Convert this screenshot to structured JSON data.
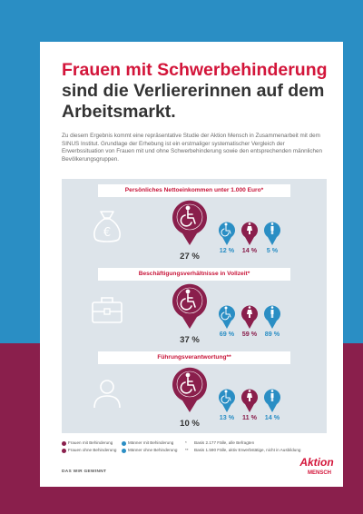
{
  "title": {
    "line1": "Frauen mit Schwerbehinderung",
    "line2": "sind die Verliererinnen auf dem Arbeitsmarkt."
  },
  "intro": "Zu diesem Ergebnis kommt eine repräsentative Studie der Aktion Mensch in Zusammenarbeit mit dem SINUS Institut. Grundlage der Erhebung ist ein erstmaliger systematischer Vergleich der Erwerbssituation von Frauen mit und ohne Schwerbehinderung sowie den entsprechenden männlichen Bevölkerungsgruppen.",
  "sections": [
    {
      "heading": "Persönliches Nettoeinkommen unter 1.000 Euro*",
      "icon": "money-bag-euro-icon",
      "main_value": "27 %",
      "values": [
        "12 %",
        "14 %",
        "5 %"
      ]
    },
    {
      "heading": "Beschäftigungsverhältnisse in Vollzeit*",
      "icon": "briefcase-icon",
      "main_value": "37 %",
      "values": [
        "69 %",
        "59 %",
        "89 %"
      ]
    },
    {
      "heading": "Führungsverantwortung**",
      "icon": "person-icon",
      "main_value": "10 %",
      "values": [
        "13 %",
        "11 %",
        "14 %"
      ]
    }
  ],
  "legend": {
    "a": "Frauen mit Behinderung",
    "b": "Frauen ohne Behinderung",
    "c": "Männer mit Behinderung",
    "d": "Männer ohne Behinderung",
    "n1_mark": "*",
    "n1": "Basis 2.177 Fälle, alle Befragten",
    "n2_mark": "**",
    "n2": "Basis 1.590 Fälle, aktiv Erwerbstätige, nicht in Ausbildung"
  },
  "footer": {
    "slogan": "DAS WIR GEWINNT"
  },
  "logo": {
    "line1": "Aktion",
    "line2": "MENSCH"
  },
  "colors": {
    "blue": "#2a8ec4",
    "wine": "#8a1f4c",
    "red": "#d3153a",
    "panel": "#dde4ea"
  }
}
